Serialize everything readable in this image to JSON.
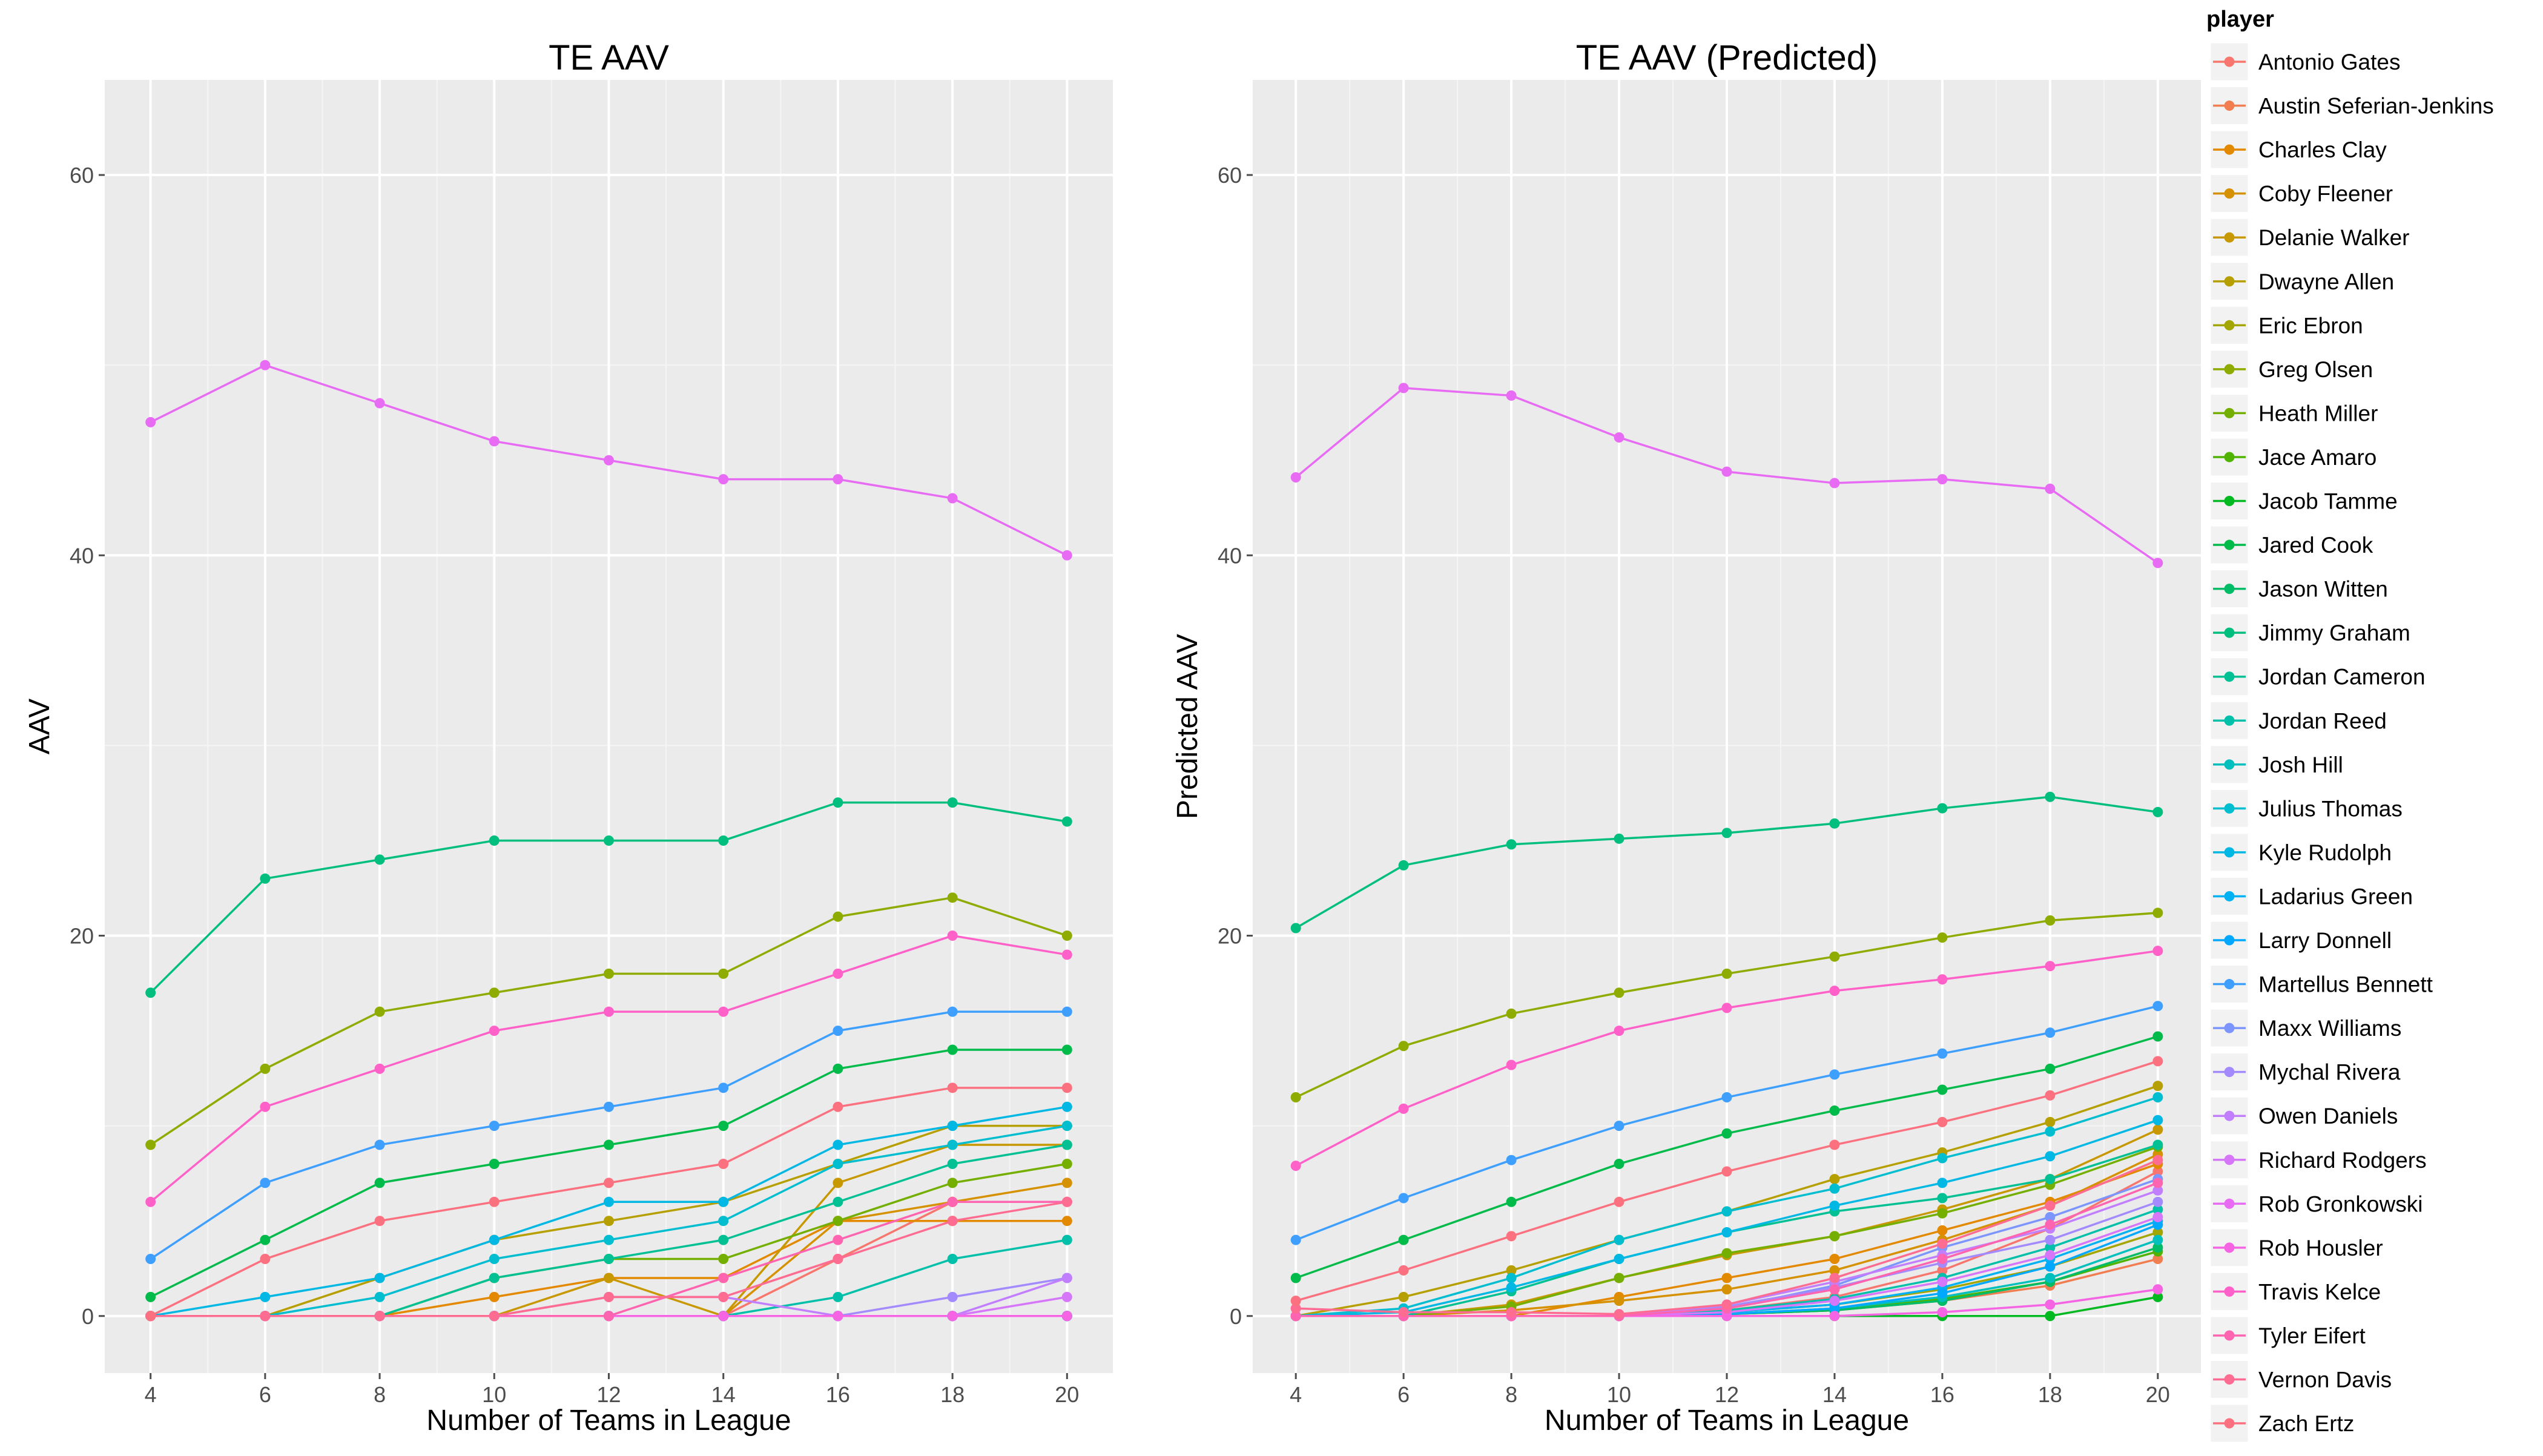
{
  "chart_data": [
    {
      "type": "line",
      "title": "TE AAV",
      "xlabel": "Number of Teams in League",
      "ylabel": "AAV",
      "x": [
        4,
        6,
        8,
        10,
        12,
        14,
        16,
        18,
        20
      ],
      "xlim": [
        3.2,
        20.8
      ],
      "ylim": [
        -3,
        65
      ],
      "xticks": [
        4,
        6,
        8,
        10,
        12,
        14,
        16,
        18,
        20
      ],
      "yticks": [
        0,
        20,
        40,
        60
      ],
      "grid": true,
      "series": [
        {
          "name": "Antonio Gates",
          "values": [
            0,
            0,
            0,
            0,
            0,
            0,
            3,
            6,
            6
          ]
        },
        {
          "name": "Austin Seferian-Jenkins",
          "values": [
            0,
            0,
            0,
            0,
            0,
            0,
            0,
            0,
            0
          ]
        },
        {
          "name": "Charles Clay",
          "values": [
            0,
            0,
            0,
            1,
            2,
            2,
            5,
            5,
            5
          ]
        },
        {
          "name": "Coby Fleener",
          "values": [
            0,
            0,
            0,
            0,
            0,
            0,
            5,
            6,
            7
          ]
        },
        {
          "name": "Delanie Walker",
          "values": [
            0,
            0,
            0,
            0,
            2,
            0,
            7,
            9,
            9
          ]
        },
        {
          "name": "Dwayne Allen",
          "values": [
            0,
            0,
            2,
            4,
            5,
            6,
            8,
            10,
            10
          ]
        },
        {
          "name": "Eric Ebron",
          "values": [
            0,
            0,
            0,
            0,
            0,
            0,
            0,
            0,
            0
          ]
        },
        {
          "name": "Greg Olsen",
          "values": [
            9,
            13,
            16,
            17,
            18,
            18,
            21,
            22,
            20
          ]
        },
        {
          "name": "Heath Miller",
          "values": [
            0,
            0,
            0,
            2,
            3,
            3,
            5,
            7,
            8
          ]
        },
        {
          "name": "Jace Amaro",
          "values": [
            0,
            0,
            0,
            0,
            0,
            0,
            0,
            0,
            0
          ]
        },
        {
          "name": "Jacob Tamme",
          "values": [
            0,
            0,
            0,
            0,
            0,
            0,
            0,
            0,
            0
          ]
        },
        {
          "name": "Jared Cook",
          "values": [
            1,
            4,
            7,
            8,
            9,
            10,
            13,
            14,
            14
          ]
        },
        {
          "name": "Jason Witten",
          "values": [
            0,
            0,
            0,
            0,
            0,
            0,
            0,
            0,
            0
          ]
        },
        {
          "name": "Jimmy Graham",
          "values": [
            17,
            23,
            24,
            25,
            25,
            25,
            27,
            27,
            26
          ]
        },
        {
          "name": "Jordan Cameron",
          "values": [
            0,
            0,
            0,
            2,
            3,
            4,
            6,
            8,
            9
          ]
        },
        {
          "name": "Jordan Reed",
          "values": [
            0,
            0,
            0,
            0,
            0,
            0,
            1,
            3,
            4
          ]
        },
        {
          "name": "Josh Hill",
          "values": [
            0,
            0,
            0,
            0,
            0,
            0,
            0,
            0,
            0
          ]
        },
        {
          "name": "Julius Thomas",
          "values": [
            0,
            0,
            1,
            3,
            4,
            5,
            8,
            9,
            10
          ]
        },
        {
          "name": "Kyle Rudolph",
          "values": [
            0,
            1,
            2,
            4,
            6,
            6,
            9,
            10,
            11
          ]
        },
        {
          "name": "Ladarius Green",
          "values": [
            0,
            0,
            0,
            0,
            0,
            0,
            0,
            0,
            0
          ]
        },
        {
          "name": "Larry Donnell",
          "values": [
            0,
            0,
            0,
            0,
            0,
            0,
            0,
            0,
            0
          ]
        },
        {
          "name": "Martellus Bennett",
          "values": [
            3,
            7,
            9,
            10,
            11,
            12,
            15,
            16,
            16
          ]
        },
        {
          "name": "Maxx Williams",
          "values": [
            0,
            0,
            0,
            0,
            0,
            0,
            0,
            0,
            0
          ]
        },
        {
          "name": "Mychal Rivera",
          "values": [
            0,
            0,
            0,
            0,
            0,
            0,
            0,
            1,
            2
          ]
        },
        {
          "name": "Owen Daniels",
          "values": [
            0,
            0,
            0,
            0,
            1,
            1,
            0,
            0,
            2
          ]
        },
        {
          "name": "Richard Rodgers",
          "values": [
            0,
            0,
            0,
            0,
            0,
            0,
            0,
            0,
            1
          ]
        },
        {
          "name": "Rob Gronkowski",
          "values": [
            47,
            50,
            48,
            46,
            45,
            44,
            44,
            43,
            40
          ]
        },
        {
          "name": "Rob Housler",
          "values": [
            0,
            0,
            0,
            0,
            0,
            0,
            0,
            0,
            0
          ]
        },
        {
          "name": "Travis Kelce",
          "values": [
            6,
            11,
            13,
            15,
            16,
            16,
            18,
            20,
            19
          ]
        },
        {
          "name": "Tyler Eifert",
          "values": [
            0,
            0,
            0,
            0,
            0,
            2,
            4,
            6,
            6
          ]
        },
        {
          "name": "Vernon Davis",
          "values": [
            0,
            0,
            0,
            0,
            1,
            1,
            3,
            5,
            6
          ]
        },
        {
          "name": "Zach Ertz",
          "values": [
            0,
            3,
            5,
            6,
            7,
            8,
            11,
            12,
            12
          ]
        }
      ]
    },
    {
      "type": "line",
      "title": "TE AAV (Predicted)",
      "xlabel": "Number of Teams in League",
      "ylabel": "Predicted AAV",
      "x": [
        4,
        6,
        8,
        10,
        12,
        14,
        16,
        18,
        20
      ],
      "xlim": [
        3.2,
        20.8
      ],
      "ylim": [
        -3,
        65
      ],
      "xticks": [
        4,
        6,
        8,
        10,
        12,
        14,
        16,
        18,
        20
      ],
      "yticks": [
        0,
        20,
        40,
        60
      ],
      "grid": true,
      "series": [
        {
          "name": "Antonio Gates",
          "values": [
            0,
            0,
            0,
            0,
            0.3,
            1.0,
            2.4,
            4.6,
            7.6
          ]
        },
        {
          "name": "Austin Seferian-Jenkins",
          "values": [
            0,
            0,
            0,
            0,
            0.1,
            0.3,
            0.8,
            1.6,
            3.0
          ]
        },
        {
          "name": "Charles Clay",
          "values": [
            0,
            0,
            0,
            1.0,
            2.0,
            3.0,
            4.5,
            6.0,
            8.0
          ]
        },
        {
          "name": "Coby Fleener",
          "values": [
            0,
            0,
            0.3,
            0.8,
            1.4,
            2.4,
            4.0,
            5.8,
            8.5
          ]
        },
        {
          "name": "Delanie Walker",
          "values": [
            0,
            0,
            0.6,
            2.0,
            3.2,
            4.2,
            5.6,
            7.2,
            9.8
          ]
        },
        {
          "name": "Dwayne Allen",
          "values": [
            0,
            1.0,
            2.4,
            4.0,
            5.5,
            7.2,
            8.6,
            10.2,
            12.1
          ]
        },
        {
          "name": "Eric Ebron",
          "values": [
            0,
            0,
            0,
            0,
            0.2,
            0.6,
            1.4,
            2.6,
            4.4
          ]
        },
        {
          "name": "Greg Olsen",
          "values": [
            11.5,
            14.2,
            15.9,
            17.0,
            18.0,
            18.9,
            19.9,
            20.8,
            21.2
          ]
        },
        {
          "name": "Heath Miller",
          "values": [
            0,
            0,
            0.5,
            2.0,
            3.3,
            4.2,
            5.4,
            6.9,
            8.9
          ]
        },
        {
          "name": "Jace Amaro",
          "values": [
            0,
            0,
            0,
            0,
            0.1,
            0.3,
            0.9,
            1.8,
            3.4
          ]
        },
        {
          "name": "Jacob Tamme",
          "values": [
            0,
            0,
            0,
            0,
            0,
            0,
            0,
            0,
            1.0
          ]
        },
        {
          "name": "Jared Cook",
          "values": [
            2.0,
            4.0,
            6.0,
            8.0,
            9.6,
            10.8,
            11.9,
            13.0,
            14.7
          ]
        },
        {
          "name": "Jason Witten",
          "values": [
            0,
            0,
            0,
            0,
            0.1,
            0.3,
            0.8,
            1.8,
            3.6
          ]
        },
        {
          "name": "Jimmy Graham",
          "values": [
            20.4,
            23.7,
            24.8,
            25.1,
            25.4,
            25.9,
            26.7,
            27.3,
            26.5
          ]
        },
        {
          "name": "Jordan Cameron",
          "values": [
            0,
            0,
            1.3,
            3.0,
            4.4,
            5.5,
            6.2,
            7.2,
            9.0
          ]
        },
        {
          "name": "Jordan Reed",
          "values": [
            0,
            0,
            0,
            0,
            0.3,
            0.9,
            2.0,
            3.6,
            5.6
          ]
        },
        {
          "name": "Josh Hill",
          "values": [
            0,
            0,
            0,
            0,
            0.1,
            0.4,
            1.0,
            2.0,
            4.0
          ]
        },
        {
          "name": "Julius Thomas",
          "values": [
            0,
            0.4,
            2.0,
            4.0,
            5.5,
            6.7,
            8.3,
            9.7,
            11.5
          ]
        },
        {
          "name": "Kyle Rudolph",
          "values": [
            0,
            0.2,
            1.5,
            3.0,
            4.4,
            5.8,
            7.0,
            8.4,
            10.3
          ]
        },
        {
          "name": "Ladarius Green",
          "values": [
            0,
            0,
            0,
            0,
            0.2,
            0.6,
            1.5,
            3.0,
            5.0
          ]
        },
        {
          "name": "Larry Donnell",
          "values": [
            0,
            0,
            0,
            0,
            0.1,
            0.4,
            1.2,
            2.6,
            4.8
          ]
        },
        {
          "name": "Martellus Bennett",
          "values": [
            4.0,
            6.2,
            8.2,
            10.0,
            11.5,
            12.7,
            13.8,
            14.9,
            16.3
          ]
        },
        {
          "name": "Maxx Williams",
          "values": [
            0,
            0,
            0,
            0,
            0.4,
            1.6,
            3.6,
            5.2,
            7.2
          ]
        },
        {
          "name": "Mychal Rivera",
          "values": [
            0,
            0,
            0,
            0,
            0.5,
            1.5,
            2.8,
            4.0,
            6.0
          ]
        },
        {
          "name": "Owen Daniels",
          "values": [
            0,
            0,
            0,
            0,
            0.6,
            1.8,
            3.2,
            4.6,
            6.6
          ]
        },
        {
          "name": "Richard Rodgers",
          "values": [
            0,
            0,
            0,
            0,
            0.2,
            0.8,
            1.8,
            3.2,
            5.2
          ]
        },
        {
          "name": "Rob Gronkowski",
          "values": [
            44.1,
            48.8,
            48.4,
            46.2,
            44.4,
            43.8,
            44.0,
            43.5,
            39.6
          ]
        },
        {
          "name": "Rob Housler",
          "values": [
            0,
            0,
            0,
            0,
            0,
            0,
            0.2,
            0.6,
            1.4
          ]
        },
        {
          "name": "Travis Kelce",
          "values": [
            7.9,
            10.9,
            13.2,
            15.0,
            16.2,
            17.1,
            17.7,
            18.4,
            19.2
          ]
        },
        {
          "name": "Tyler Eifert",
          "values": [
            0,
            0,
            0,
            0,
            0.4,
            1.4,
            3.0,
            4.8,
            7.0
          ]
        },
        {
          "name": "Vernon Davis",
          "values": [
            0.4,
            0.2,
            0.2,
            0.1,
            0.6,
            2.0,
            3.8,
            5.8,
            8.2
          ]
        },
        {
          "name": "Zach Ertz",
          "values": [
            0.8,
            2.4,
            4.2,
            6.0,
            7.6,
            9.0,
            10.2,
            11.6,
            13.4
          ]
        }
      ]
    }
  ],
  "legend": {
    "title": "player",
    "placement": "right",
    "entries": [
      {
        "label": "Antonio Gates",
        "color": "#F8766D"
      },
      {
        "label": "Austin Seferian-Jenkins",
        "color": "#F07E50"
      },
      {
        "label": "Charles Clay",
        "color": "#E38900"
      },
      {
        "label": "Coby Fleener",
        "color": "#D69100"
      },
      {
        "label": "Delanie Walker",
        "color": "#C79800"
      },
      {
        "label": "Dwayne Allen",
        "color": "#B69F00"
      },
      {
        "label": "Eric Ebron",
        "color": "#A3A500"
      },
      {
        "label": "Greg Olsen",
        "color": "#8EAB00"
      },
      {
        "label": "Heath Miller",
        "color": "#74AF00"
      },
      {
        "label": "Jace Amaro",
        "color": "#50B300"
      },
      {
        "label": "Jacob Tamme",
        "color": "#00B81F"
      },
      {
        "label": "Jared Cook",
        "color": "#00BA4A"
      },
      {
        "label": "Jason Witten",
        "color": "#00BC66"
      },
      {
        "label": "Jimmy Graham",
        "color": "#00BE7E"
      },
      {
        "label": "Jordan Cameron",
        "color": "#00C094"
      },
      {
        "label": "Jordan Reed",
        "color": "#00C0A9"
      },
      {
        "label": "Josh Hill",
        "color": "#00BFBD"
      },
      {
        "label": "Julius Thomas",
        "color": "#00BDD0"
      },
      {
        "label": "Kyle Rudolph",
        "color": "#00B8E3"
      },
      {
        "label": "Ladarius Green",
        "color": "#00B2F3"
      },
      {
        "label": "Larry Donnell",
        "color": "#00A9FF"
      },
      {
        "label": "Martellus Bennett",
        "color": "#3E9FFF"
      },
      {
        "label": "Maxx Williams",
        "color": "#7C95FF"
      },
      {
        "label": "Mychal Rivera",
        "color": "#A38AFF"
      },
      {
        "label": "Owen Daniels",
        "color": "#C17FFF"
      },
      {
        "label": "Richard Rodgers",
        "color": "#D676F8"
      },
      {
        "label": "Rob Gronkowski",
        "color": "#E76BF3"
      },
      {
        "label": "Rob Housler",
        "color": "#F564E3"
      },
      {
        "label": "Travis Kelce",
        "color": "#FF61C9"
      },
      {
        "label": "Tyler Eifert",
        "color": "#FF64B0"
      },
      {
        "label": "Vernon Davis",
        "color": "#FF6C92"
      },
      {
        "label": "Zach Ertz",
        "color": "#FC717F"
      }
    ]
  },
  "colors": {
    "panel_background": "#EBEBEB",
    "grid_major": "#FFFFFF",
    "grid_minor": "#F5F5F5",
    "axis_text": "#4D4D4D",
    "legend_key_background": "#F2F2F2"
  }
}
